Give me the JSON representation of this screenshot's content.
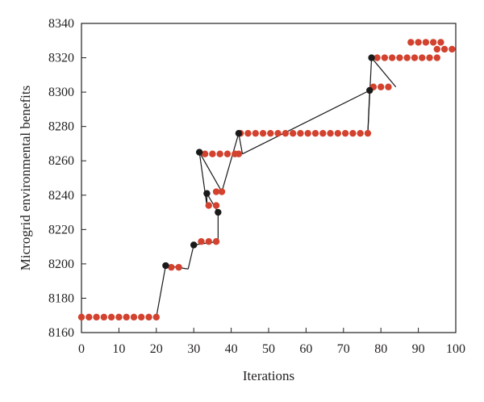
{
  "chart_data": {
    "type": "scatter",
    "title": "",
    "xlabel": "Iterations",
    "ylabel": "Microgrid environmental benefits",
    "xlim": [
      0,
      100
    ],
    "ylim": [
      8160,
      8340
    ],
    "xticks": [
      0,
      10,
      20,
      30,
      40,
      50,
      60,
      70,
      80,
      90,
      100
    ],
    "yticks": [
      8160,
      8180,
      8200,
      8220,
      8240,
      8260,
      8280,
      8300,
      8320,
      8340
    ],
    "grid": false,
    "legend": "none",
    "colors": {
      "red_points": "#d2422e",
      "black_points": "#1a1a1a",
      "line": "#1a1a1a"
    },
    "series": [
      {
        "marker": "red",
        "points": [
          [
            0,
            8169
          ],
          [
            2,
            8169
          ],
          [
            4,
            8169
          ],
          [
            6,
            8169
          ],
          [
            8,
            8169
          ],
          [
            10,
            8169
          ],
          [
            12,
            8169
          ],
          [
            14,
            8169
          ],
          [
            16,
            8169
          ],
          [
            18,
            8169
          ],
          [
            20,
            8169
          ],
          [
            24,
            8198
          ],
          [
            26,
            8198
          ],
          [
            32,
            8213
          ],
          [
            34,
            8213
          ],
          [
            36,
            8213
          ],
          [
            33,
            8264
          ],
          [
            35,
            8264
          ],
          [
            37,
            8264
          ],
          [
            39,
            8264
          ],
          [
            41,
            8264
          ],
          [
            42,
            8264
          ],
          [
            34,
            8234
          ],
          [
            36,
            8234
          ],
          [
            36,
            8242
          ],
          [
            37.5,
            8242
          ],
          [
            42.5,
            8276
          ],
          [
            44.5,
            8276
          ],
          [
            46.5,
            8276
          ],
          [
            48.5,
            8276
          ],
          [
            50.5,
            8276
          ],
          [
            52.5,
            8276
          ],
          [
            54.5,
            8276
          ],
          [
            56.5,
            8276
          ],
          [
            58.5,
            8276
          ],
          [
            60.5,
            8276
          ],
          [
            62.5,
            8276
          ],
          [
            64.5,
            8276
          ],
          [
            66.5,
            8276
          ],
          [
            68.5,
            8276
          ],
          [
            70.5,
            8276
          ],
          [
            72.5,
            8276
          ],
          [
            74.5,
            8276
          ],
          [
            76.5,
            8276
          ],
          [
            78,
            8303
          ],
          [
            80,
            8303
          ],
          [
            82,
            8303
          ],
          [
            79,
            8320
          ],
          [
            81,
            8320
          ],
          [
            83,
            8320
          ],
          [
            85,
            8320
          ],
          [
            87,
            8320
          ],
          [
            89,
            8320
          ],
          [
            91,
            8320
          ],
          [
            93,
            8320
          ],
          [
            95,
            8320
          ],
          [
            88,
            8329
          ],
          [
            90,
            8329
          ],
          [
            92,
            8329
          ],
          [
            94,
            8329
          ],
          [
            96,
            8329
          ],
          [
            95,
            8325
          ],
          [
            97,
            8325
          ],
          [
            99,
            8325
          ]
        ]
      },
      {
        "marker": "black",
        "points": [
          [
            22.5,
            8199
          ],
          [
            30,
            8211
          ],
          [
            31.5,
            8265
          ],
          [
            33.5,
            8241
          ],
          [
            36.5,
            8230
          ],
          [
            42,
            8276
          ],
          [
            77,
            8301
          ],
          [
            77.5,
            8320
          ]
        ]
      }
    ],
    "connector_path": [
      [
        20,
        8169
      ],
      [
        22.5,
        8199
      ],
      [
        28.5,
        8197
      ],
      [
        30,
        8211
      ],
      [
        36.5,
        8213
      ],
      [
        36.5,
        8230
      ],
      [
        33.5,
        8241
      ],
      [
        33.5,
        8234
      ],
      [
        31.5,
        8265
      ],
      [
        37.5,
        8242
      ],
      [
        42,
        8276
      ],
      [
        43,
        8264
      ],
      [
        77,
        8301
      ],
      [
        76.5,
        8276
      ],
      [
        77.5,
        8320
      ],
      [
        84,
        8303
      ]
    ]
  }
}
